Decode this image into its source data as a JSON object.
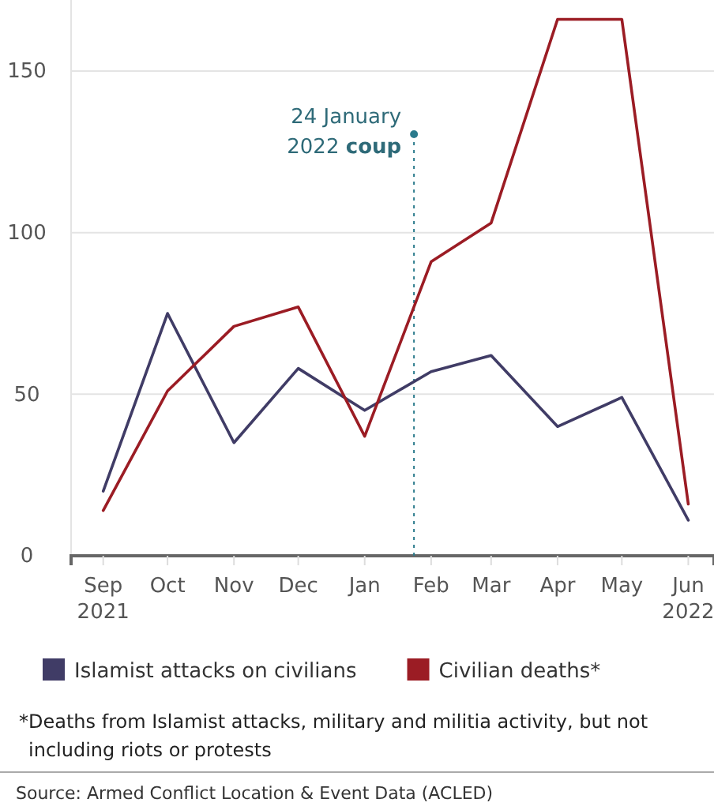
{
  "chart_data": {
    "type": "line",
    "x": [
      "2021-09",
      "2021-10",
      "2021-11",
      "2021-12",
      "2022-01",
      "2022-02",
      "2022-03",
      "2022-04",
      "2022-05",
      "2022-06"
    ],
    "series": [
      {
        "name": "Islamist attacks on civilians",
        "color": "#403c66",
        "values": [
          20,
          75,
          35,
          58,
          45,
          57,
          62,
          40,
          49,
          11
        ]
      },
      {
        "name": "Civilian deaths*",
        "color": "#9b1c24",
        "values": [
          14,
          51,
          71,
          77,
          37,
          91,
          103,
          166,
          166,
          16
        ]
      }
    ],
    "xlim": [
      "2021-08-17",
      "2022-06-13"
    ],
    "xticks": [
      {
        "value": "2021-09",
        "label": "Sep 2021"
      },
      {
        "value": "2021-10",
        "label": "Oct"
      },
      {
        "value": "2021-11",
        "label": "Nov"
      },
      {
        "value": "2021-12",
        "label": "Dec"
      },
      {
        "value": "2022-01",
        "label": "Jan"
      },
      {
        "value": "2022-02",
        "label": "Feb"
      },
      {
        "value": "2022-03",
        "label": "Mar"
      },
      {
        "value": "2022-04",
        "label": "Apr"
      },
      {
        "value": "2022-05",
        "label": "May"
      },
      {
        "value": "2022-06",
        "label": "Jun 2022"
      }
    ],
    "ylim": [
      0,
      172
    ],
    "yticks": [
      0,
      50,
      100,
      150
    ],
    "grid": "y",
    "legend": "bottom",
    "marker": "none",
    "line_style": "solid",
    "ref_lines": [
      {
        "axis": "x",
        "value": "2022-01-24",
        "label": "24 January 2022 coup",
        "color": "#2a7a8c",
        "line_style": "dotted"
      }
    ],
    "annotations": [
      "*Deaths from Islamist attacks, military and militia activity, but not including riots or protests",
      "Source: Armed Conflict Location & Event Data (ACLED)"
    ]
  }
}
